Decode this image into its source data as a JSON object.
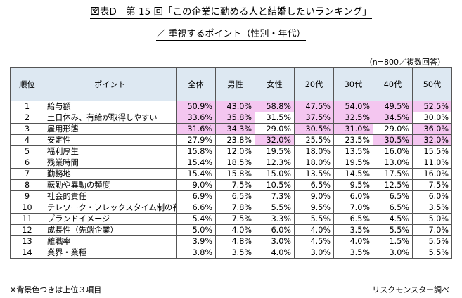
{
  "title": "図表D　第 15 回「この企業に勤める人と結婚したいランキング」",
  "subtitle": "／ 重視するポイント（性別・年代）",
  "sample_note": "（n=800／複数回答）",
  "footnote": "※背景色つきは上位３項目",
  "source": "リスクモンスター調べ",
  "highlight_color": "#f4c6f0",
  "header_color": "#dde8f2",
  "chart_data": {
    "type": "table",
    "columns": [
      "順位",
      "ポイント",
      "全体",
      "男性",
      "女性",
      "20代",
      "30代",
      "40代",
      "50代"
    ],
    "rows": [
      {
        "rank": "1",
        "point": "給与額",
        "values": [
          "50.9%",
          "43.0%",
          "58.8%",
          "47.5%",
          "54.0%",
          "49.5%",
          "52.5%"
        ],
        "highlight": [
          true,
          true,
          true,
          true,
          true,
          true,
          true
        ]
      },
      {
        "rank": "2",
        "point": "土日休み、有給が取得しやすい",
        "values": [
          "33.6%",
          "35.8%",
          "31.5%",
          "37.5%",
          "32.5%",
          "34.5%",
          "30.0%"
        ],
        "highlight": [
          true,
          true,
          false,
          true,
          true,
          true,
          false
        ]
      },
      {
        "rank": "3",
        "point": "雇用形態",
        "values": [
          "31.6%",
          "34.3%",
          "29.0%",
          "30.5%",
          "31.0%",
          "29.0%",
          "36.0%"
        ],
        "highlight": [
          true,
          true,
          false,
          true,
          true,
          false,
          true
        ]
      },
      {
        "rank": "4",
        "point": "安定性",
        "values": [
          "27.9%",
          "23.8%",
          "32.0%",
          "25.5%",
          "23.5%",
          "30.5%",
          "32.0%"
        ],
        "highlight": [
          false,
          false,
          true,
          false,
          false,
          true,
          true
        ]
      },
      {
        "rank": "5",
        "point": "福利厚生",
        "values": [
          "15.8%",
          "12.0%",
          "19.5%",
          "18.0%",
          "13.5%",
          "16.0%",
          "15.5%"
        ],
        "highlight": [
          false,
          false,
          false,
          false,
          false,
          false,
          false
        ]
      },
      {
        "rank": "6",
        "point": "残業時間",
        "values": [
          "15.4%",
          "18.5%",
          "12.3%",
          "18.0%",
          "19.5%",
          "13.0%",
          "11.0%"
        ],
        "highlight": [
          false,
          false,
          false,
          false,
          false,
          false,
          false
        ]
      },
      {
        "rank": "7",
        "point": "勤務地",
        "values": [
          "15.4%",
          "15.8%",
          "15.0%",
          "13.5%",
          "14.5%",
          "17.5%",
          "16.0%"
        ],
        "highlight": [
          false,
          false,
          false,
          false,
          false,
          false,
          false
        ]
      },
      {
        "rank": "8",
        "point": "転勤や異動の頻度",
        "values": [
          "9.0%",
          "7.5%",
          "10.5%",
          "6.5%",
          "9.5%",
          "12.5%",
          "7.5%"
        ],
        "highlight": [
          false,
          false,
          false,
          false,
          false,
          false,
          false
        ]
      },
      {
        "rank": "9",
        "point": "社会的責任",
        "values": [
          "6.9%",
          "6.5%",
          "7.3%",
          "9.0%",
          "6.0%",
          "6.5%",
          "6.0%"
        ],
        "highlight": [
          false,
          false,
          false,
          false,
          false,
          false,
          false
        ]
      },
      {
        "rank": "10",
        "point": "テレワーク・フレックスタイム制の有無",
        "values": [
          "6.6%",
          "7.8%",
          "5.5%",
          "9.5%",
          "7.0%",
          "6.5%",
          "3.5%"
        ],
        "highlight": [
          false,
          false,
          false,
          false,
          false,
          false,
          false
        ]
      },
      {
        "rank": "11",
        "point": "ブランドイメージ",
        "values": [
          "5.4%",
          "7.5%",
          "3.3%",
          "5.5%",
          "6.5%",
          "4.5%",
          "5.0%"
        ],
        "highlight": [
          false,
          false,
          false,
          false,
          false,
          false,
          false
        ]
      },
      {
        "rank": "12",
        "point": "成長性（先端企業）",
        "values": [
          "5.0%",
          "4.0%",
          "6.0%",
          "4.0%",
          "3.5%",
          "5.5%",
          "7.0%"
        ],
        "highlight": [
          false,
          false,
          false,
          false,
          false,
          false,
          false
        ]
      },
      {
        "rank": "13",
        "point": "離職率",
        "values": [
          "3.9%",
          "4.8%",
          "3.0%",
          "4.5%",
          "4.0%",
          "1.5%",
          "5.5%"
        ],
        "highlight": [
          false,
          false,
          false,
          false,
          false,
          false,
          false
        ]
      },
      {
        "rank": "14",
        "point": "業界・業種",
        "values": [
          "3.8%",
          "3.5%",
          "4.0%",
          "3.0%",
          "3.5%",
          "3.0%",
          "5.5%"
        ],
        "highlight": [
          false,
          false,
          false,
          false,
          false,
          false,
          false
        ]
      }
    ]
  }
}
